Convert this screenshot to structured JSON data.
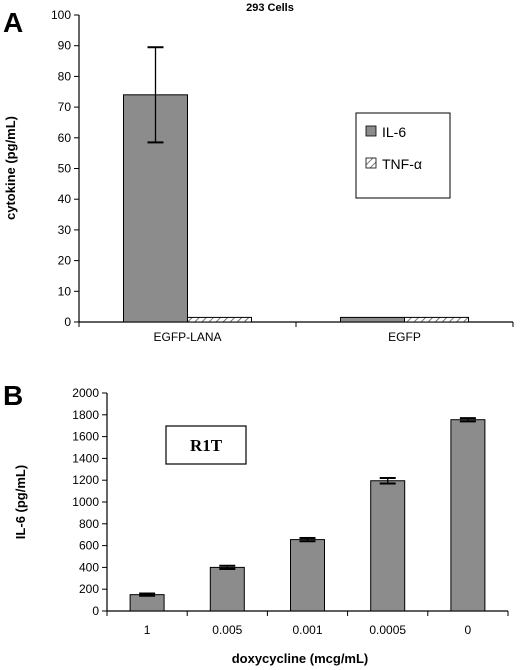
{
  "figure": {
    "panel_a_letter": "A",
    "panel_b_letter": "B"
  },
  "chart_data": [
    {
      "type": "bar",
      "title": "293 Cells",
      "xlabel": "",
      "ylabel": "cytokine  (pg/mL)",
      "categories": [
        "EGFP-LANA",
        "EGFP"
      ],
      "ylim": [
        0,
        100
      ],
      "yticks": [
        0,
        10,
        20,
        30,
        40,
        50,
        60,
        70,
        80,
        90,
        100
      ],
      "series": [
        {
          "name": "IL-6",
          "values": [
            74,
            1.5
          ],
          "error": [
            15.5,
            0
          ],
          "fill": "#8c8c8c"
        },
        {
          "name": "TNF-α",
          "values": [
            1.5,
            1.5
          ],
          "error": [
            0,
            0
          ],
          "fill": "hatch"
        }
      ],
      "legend": "inside-right",
      "grid": false
    },
    {
      "type": "bar",
      "title": "",
      "xlabel": "doxycycline (mcg/mL)",
      "ylabel": "IL-6 (pg/mL)",
      "annotation": "R1T",
      "categories": [
        "1",
        "0.005",
        "0.001",
        "0.0005",
        "0"
      ],
      "ylim": [
        0,
        2000
      ],
      "yticks": [
        0,
        200,
        400,
        600,
        800,
        1000,
        1200,
        1400,
        1600,
        1800,
        2000
      ],
      "series": [
        {
          "name": "",
          "values": [
            150,
            400,
            655,
            1195,
            1755
          ],
          "error": [
            10,
            15,
            15,
            25,
            15
          ],
          "fill": "#8c8c8c"
        }
      ],
      "grid": false
    }
  ]
}
